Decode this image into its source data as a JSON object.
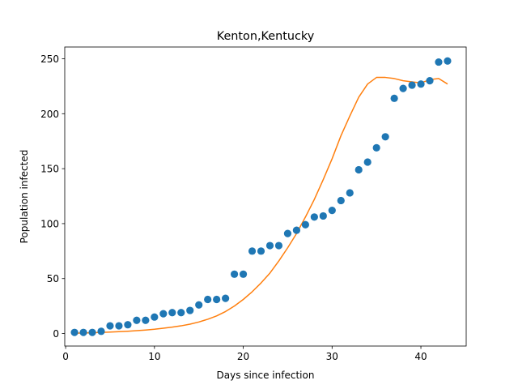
{
  "chart_data": {
    "type": "scatter",
    "title": "Kenton,Kentucky",
    "xlabel": "Days since infection",
    "ylabel": "Population infected",
    "xlim": [
      -0.1,
      45.1
    ],
    "ylim": [
      -11.4,
      260.7
    ],
    "xticks": [
      0,
      10,
      20,
      30,
      40
    ],
    "yticks": [
      0,
      50,
      100,
      150,
      200,
      250
    ],
    "grid": false,
    "series": [
      {
        "kind": "scatter",
        "color": "#1f77b4",
        "x": [
          1,
          2,
          3,
          4,
          5,
          6,
          7,
          8,
          9,
          10,
          11,
          12,
          13,
          14,
          15,
          16,
          17,
          18,
          19,
          20,
          21,
          22,
          23,
          24,
          25,
          26,
          27,
          28,
          29,
          30,
          31,
          32,
          33,
          34,
          35,
          36,
          37,
          38,
          39,
          40,
          41,
          42,
          43
        ],
        "y": [
          1,
          1,
          1,
          2,
          7,
          7,
          8,
          12,
          12,
          15,
          18,
          19,
          19,
          21,
          26,
          31,
          31,
          32,
          54,
          54,
          75,
          75,
          80,
          80,
          91,
          94,
          99,
          106,
          107,
          112,
          121,
          128,
          149,
          156,
          169,
          179,
          214,
          223,
          226,
          227,
          230,
          247,
          248
        ]
      },
      {
        "kind": "line",
        "color": "#ff7f0e",
        "x": [
          1,
          2,
          3,
          4,
          5,
          6,
          7,
          8,
          9,
          10,
          11,
          12,
          13,
          14,
          15,
          16,
          17,
          18,
          19,
          20,
          21,
          22,
          23,
          24,
          25,
          26,
          27,
          28,
          29,
          30,
          31,
          32,
          33,
          34,
          35,
          36,
          37,
          38,
          39,
          40,
          41,
          42,
          43
        ],
        "y": [
          0.3,
          0.5,
          0.7,
          1.0,
          1.3,
          1.7,
          2.1,
          2.6,
          3.2,
          3.9,
          4.8,
          5.8,
          7.0,
          8.5,
          10.5,
          13,
          16,
          20,
          25,
          31,
          38,
          46,
          55,
          66,
          78,
          91,
          106,
          122,
          140,
          159,
          180,
          198,
          215,
          227,
          233,
          233,
          232,
          230,
          229,
          228,
          231,
          232,
          227
        ]
      }
    ]
  }
}
